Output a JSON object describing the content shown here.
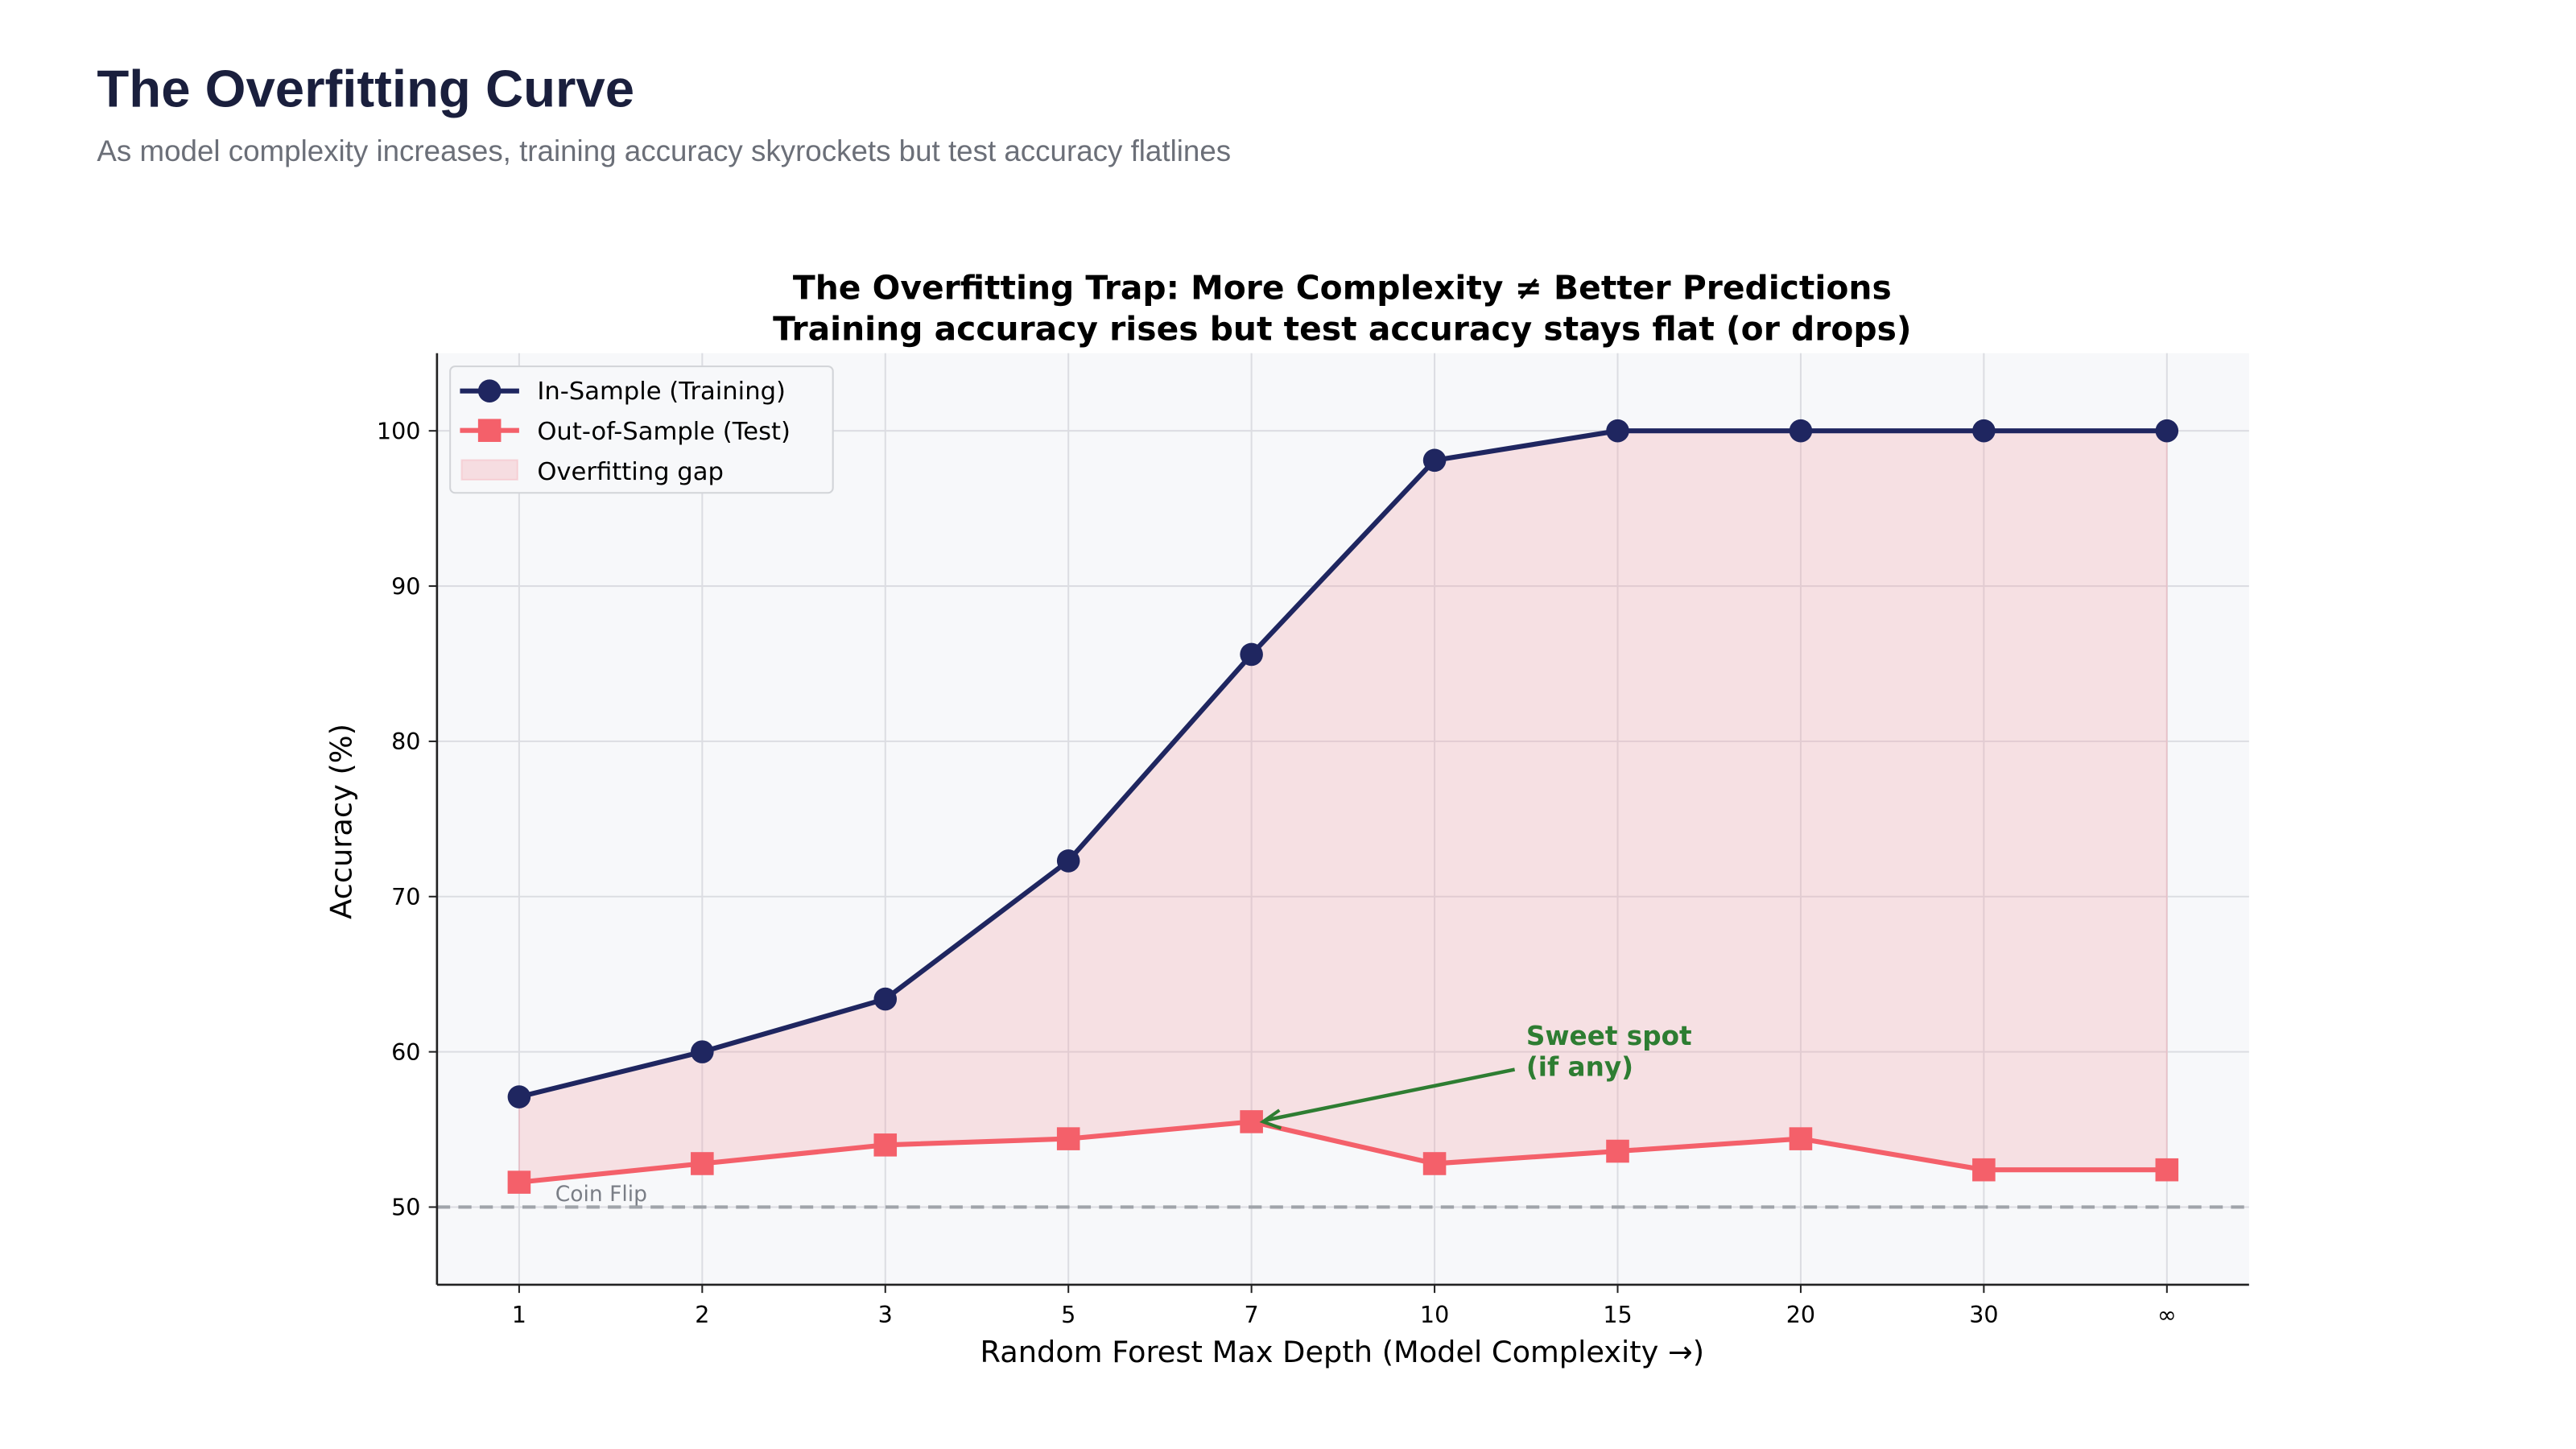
{
  "header": {
    "title": "The Overfitting Curve",
    "subtitle": "As model complexity increases, training accuracy skyrockets but test accuracy flatlines"
  },
  "chart_data": {
    "type": "line",
    "title": "The Overfitting Trap: More Complexity ≠ Better Predictions",
    "subtitle": "Training accuracy rises but test accuracy stays flat (or drops)",
    "xlabel": "Random Forest Max Depth (Model Complexity →)",
    "ylabel": "Accuracy (%)",
    "categories": [
      "1",
      "2",
      "3",
      "5",
      "7",
      "10",
      "15",
      "20",
      "30",
      "∞"
    ],
    "ylim": [
      45,
      105
    ],
    "yticks": [
      50,
      60,
      70,
      80,
      90,
      100
    ],
    "grid": true,
    "legend_placement": "top-left",
    "series": [
      {
        "name": "In-Sample (Training)",
        "color": "#1f2660",
        "marker": "circle",
        "values": [
          57.1,
          60.0,
          63.4,
          72.3,
          85.6,
          98.1,
          100,
          100,
          100,
          100
        ]
      },
      {
        "name": "Out-of-Sample (Test)",
        "color": "#f4606a",
        "marker": "square",
        "values": [
          51.6,
          52.8,
          54.0,
          54.4,
          55.5,
          52.8,
          53.6,
          54.4,
          52.4,
          52.4
        ]
      }
    ],
    "fill": {
      "name": "Overfitting gap",
      "color": "#f4a0a8"
    },
    "reference_line": {
      "y": 50,
      "label": "Coin Flip",
      "color": "#a0a4aa",
      "style": "dashed"
    },
    "annotation": {
      "text_lines": [
        "Sweet spot",
        "(if any)"
      ],
      "target_category": "7",
      "target_series": "Out-of-Sample (Test)",
      "color": "#2e7d32"
    },
    "background": "#f7f8fa"
  }
}
